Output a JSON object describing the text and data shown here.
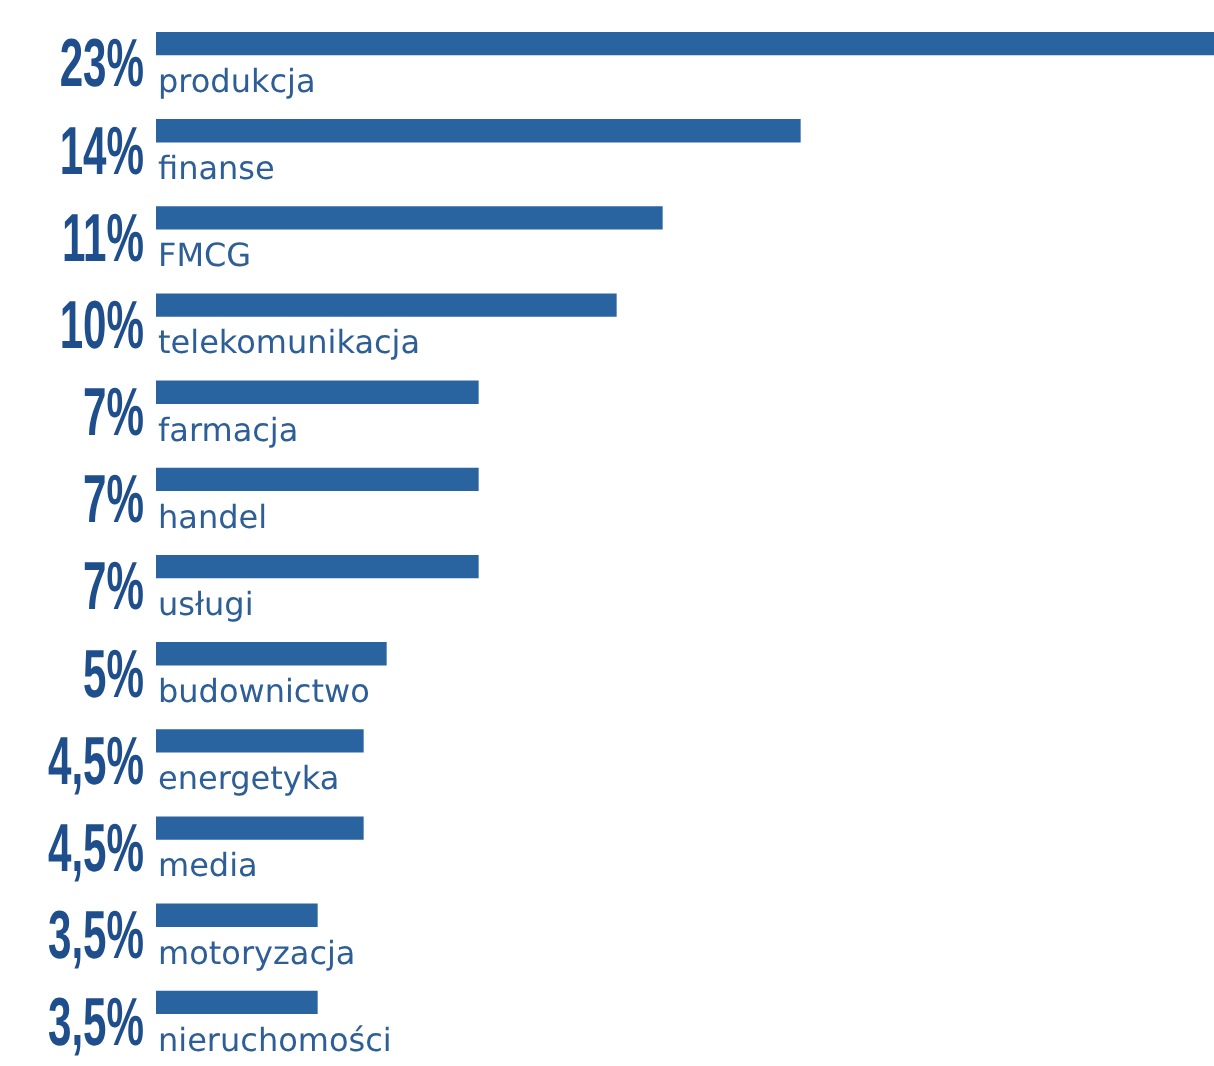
{
  "chart_data": {
    "type": "bar",
    "orientation": "horizontal",
    "categories": [
      "produkcja",
      "finanse",
      "FMCG",
      "telekomunikacja",
      "farmacja",
      "handel",
      "usługi",
      "budownictwo",
      "energetyka",
      "media",
      "motoryzacja",
      "nieruchomości"
    ],
    "values": [
      23,
      14,
      11,
      10,
      7,
      7,
      7,
      5,
      4.5,
      4.5,
      3.5,
      3.5
    ],
    "value_labels": [
      "23%",
      "14%",
      "11%",
      "10%",
      "7%",
      "7%",
      "7%",
      "5%",
      "4,5%",
      "4,5%",
      "3,5%",
      "3,5%"
    ],
    "color": "#2a64a0"
  }
}
